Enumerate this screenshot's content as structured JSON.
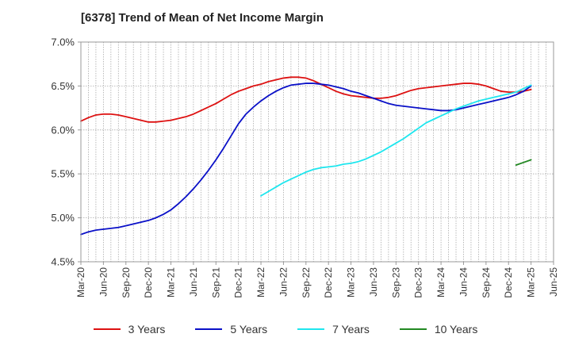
{
  "chart_data": {
    "type": "line",
    "title": "[6378]  Trend of Mean of Net Income Margin",
    "xlabel": "",
    "ylabel": "",
    "x_ticks": [
      "Mar-20",
      "Jun-20",
      "Sep-20",
      "Dec-20",
      "Mar-21",
      "Jun-21",
      "Sep-21",
      "Dec-21",
      "Mar-22",
      "Jun-22",
      "Sep-22",
      "Dec-22",
      "Mar-23",
      "Jun-23",
      "Sep-23",
      "Dec-23",
      "Mar-24",
      "Jun-24",
      "Sep-24",
      "Dec-24",
      "Mar-25",
      "Jun-25"
    ],
    "ylim": [
      4.5,
      7.0
    ],
    "y_ticks": [
      "4.5%",
      "5.0%",
      "5.5%",
      "6.0%",
      "6.5%",
      "7.0%"
    ],
    "grid": true,
    "legend_position": "bottom",
    "series": [
      {
        "name": "3 Years",
        "color": "#dd1111",
        "points": [
          [
            "Mar-20",
            6.1
          ],
          [
            "Apr-20",
            6.14
          ],
          [
            "May-20",
            6.17
          ],
          [
            "Jun-20",
            6.18
          ],
          [
            "Jul-20",
            6.18
          ],
          [
            "Aug-20",
            6.17
          ],
          [
            "Sep-20",
            6.15
          ],
          [
            "Oct-20",
            6.13
          ],
          [
            "Nov-20",
            6.11
          ],
          [
            "Dec-20",
            6.09
          ],
          [
            "Jan-21",
            6.09
          ],
          [
            "Feb-21",
            6.1
          ],
          [
            "Mar-21",
            6.11
          ],
          [
            "Apr-21",
            6.13
          ],
          [
            "May-21",
            6.15
          ],
          [
            "Jun-21",
            6.18
          ],
          [
            "Jul-21",
            6.22
          ],
          [
            "Aug-21",
            6.26
          ],
          [
            "Sep-21",
            6.3
          ],
          [
            "Oct-21",
            6.35
          ],
          [
            "Nov-21",
            6.4
          ],
          [
            "Dec-21",
            6.44
          ],
          [
            "Jan-22",
            6.47
          ],
          [
            "Feb-22",
            6.5
          ],
          [
            "Mar-22",
            6.52
          ],
          [
            "Apr-22",
            6.55
          ],
          [
            "May-22",
            6.57
          ],
          [
            "Jun-22",
            6.59
          ],
          [
            "Jul-22",
            6.6
          ],
          [
            "Aug-22",
            6.6
          ],
          [
            "Sep-22",
            6.59
          ],
          [
            "Oct-22",
            6.56
          ],
          [
            "Nov-22",
            6.52
          ],
          [
            "Dec-22",
            6.48
          ],
          [
            "Jan-23",
            6.44
          ],
          [
            "Feb-23",
            6.41
          ],
          [
            "Mar-23",
            6.39
          ],
          [
            "Apr-23",
            6.38
          ],
          [
            "May-23",
            6.37
          ],
          [
            "Jun-23",
            6.36
          ],
          [
            "Jul-23",
            6.36
          ],
          [
            "Aug-23",
            6.37
          ],
          [
            "Sep-23",
            6.39
          ],
          [
            "Oct-23",
            6.42
          ],
          [
            "Nov-23",
            6.45
          ],
          [
            "Dec-23",
            6.47
          ],
          [
            "Jan-24",
            6.48
          ],
          [
            "Feb-24",
            6.49
          ],
          [
            "Mar-24",
            6.5
          ],
          [
            "Apr-24",
            6.51
          ],
          [
            "May-24",
            6.52
          ],
          [
            "Jun-24",
            6.53
          ],
          [
            "Jul-24",
            6.53
          ],
          [
            "Aug-24",
            6.52
          ],
          [
            "Sep-24",
            6.5
          ],
          [
            "Oct-24",
            6.47
          ],
          [
            "Nov-24",
            6.44
          ],
          [
            "Dec-24",
            6.43
          ],
          [
            "Jan-25",
            6.43
          ],
          [
            "Feb-25",
            6.44
          ],
          [
            "Mar-25",
            6.46
          ]
        ]
      },
      {
        "name": "5 Years",
        "color": "#0a10c8",
        "points": [
          [
            "Mar-20",
            4.81
          ],
          [
            "Apr-20",
            4.84
          ],
          [
            "May-20",
            4.86
          ],
          [
            "Jun-20",
            4.87
          ],
          [
            "Jul-20",
            4.88
          ],
          [
            "Aug-20",
            4.89
          ],
          [
            "Sep-20",
            4.91
          ],
          [
            "Oct-20",
            4.93
          ],
          [
            "Nov-20",
            4.95
          ],
          [
            "Dec-20",
            4.97
          ],
          [
            "Jan-21",
            5.0
          ],
          [
            "Feb-21",
            5.04
          ],
          [
            "Mar-21",
            5.09
          ],
          [
            "Apr-21",
            5.16
          ],
          [
            "May-21",
            5.24
          ],
          [
            "Jun-21",
            5.33
          ],
          [
            "Jul-21",
            5.43
          ],
          [
            "Aug-21",
            5.54
          ],
          [
            "Sep-21",
            5.66
          ],
          [
            "Oct-21",
            5.79
          ],
          [
            "Nov-21",
            5.93
          ],
          [
            "Dec-21",
            6.07
          ],
          [
            "Jan-22",
            6.18
          ],
          [
            "Feb-22",
            6.26
          ],
          [
            "Mar-22",
            6.33
          ],
          [
            "Apr-22",
            6.39
          ],
          [
            "May-22",
            6.44
          ],
          [
            "Jun-22",
            6.48
          ],
          [
            "Jul-22",
            6.51
          ],
          [
            "Aug-22",
            6.52
          ],
          [
            "Sep-22",
            6.53
          ],
          [
            "Oct-22",
            6.53
          ],
          [
            "Nov-22",
            6.52
          ],
          [
            "Dec-22",
            6.51
          ],
          [
            "Jan-23",
            6.49
          ],
          [
            "Feb-23",
            6.47
          ],
          [
            "Mar-23",
            6.44
          ],
          [
            "Apr-23",
            6.42
          ],
          [
            "May-23",
            6.39
          ],
          [
            "Jun-23",
            6.36
          ],
          [
            "Jul-23",
            6.33
          ],
          [
            "Aug-23",
            6.3
          ],
          [
            "Sep-23",
            6.28
          ],
          [
            "Oct-23",
            6.27
          ],
          [
            "Nov-23",
            6.26
          ],
          [
            "Dec-23",
            6.25
          ],
          [
            "Jan-24",
            6.24
          ],
          [
            "Feb-24",
            6.23
          ],
          [
            "Mar-24",
            6.22
          ],
          [
            "Apr-24",
            6.22
          ],
          [
            "May-24",
            6.23
          ],
          [
            "Jun-24",
            6.25
          ],
          [
            "Jul-24",
            6.27
          ],
          [
            "Aug-24",
            6.29
          ],
          [
            "Sep-24",
            6.31
          ],
          [
            "Oct-24",
            6.33
          ],
          [
            "Nov-24",
            6.35
          ],
          [
            "Dec-24",
            6.37
          ],
          [
            "Jan-25",
            6.4
          ],
          [
            "Feb-25",
            6.44
          ],
          [
            "Mar-25",
            6.5
          ]
        ]
      },
      {
        "name": "7 Years",
        "color": "#1ee6ee",
        "points": [
          [
            "Mar-22",
            5.25
          ],
          [
            "Apr-22",
            5.3
          ],
          [
            "May-22",
            5.35
          ],
          [
            "Jun-22",
            5.4
          ],
          [
            "Jul-22",
            5.44
          ],
          [
            "Aug-22",
            5.48
          ],
          [
            "Sep-22",
            5.52
          ],
          [
            "Oct-22",
            5.55
          ],
          [
            "Nov-22",
            5.57
          ],
          [
            "Dec-22",
            5.58
          ],
          [
            "Jan-23",
            5.59
          ],
          [
            "Feb-23",
            5.61
          ],
          [
            "Mar-23",
            5.62
          ],
          [
            "Apr-23",
            5.64
          ],
          [
            "May-23",
            5.67
          ],
          [
            "Jun-23",
            5.71
          ],
          [
            "Jul-23",
            5.75
          ],
          [
            "Aug-23",
            5.8
          ],
          [
            "Sep-23",
            5.85
          ],
          [
            "Oct-23",
            5.9
          ],
          [
            "Nov-23",
            5.96
          ],
          [
            "Dec-23",
            6.02
          ],
          [
            "Jan-24",
            6.08
          ],
          [
            "Feb-24",
            6.12
          ],
          [
            "Mar-24",
            6.16
          ],
          [
            "Apr-24",
            6.2
          ],
          [
            "May-24",
            6.24
          ],
          [
            "Jun-24",
            6.27
          ],
          [
            "Jul-24",
            6.3
          ],
          [
            "Aug-24",
            6.33
          ],
          [
            "Sep-24",
            6.35
          ],
          [
            "Oct-24",
            6.37
          ],
          [
            "Nov-24",
            6.39
          ],
          [
            "Dec-24",
            6.41
          ],
          [
            "Jan-25",
            6.43
          ],
          [
            "Feb-25",
            6.47
          ],
          [
            "Mar-25",
            6.51
          ]
        ]
      },
      {
        "name": "10 Years",
        "color": "#228822",
        "points": [
          [
            "Jan-25",
            5.6
          ],
          [
            "Feb-25",
            5.63
          ],
          [
            "Mar-25",
            5.66
          ]
        ]
      }
    ]
  }
}
